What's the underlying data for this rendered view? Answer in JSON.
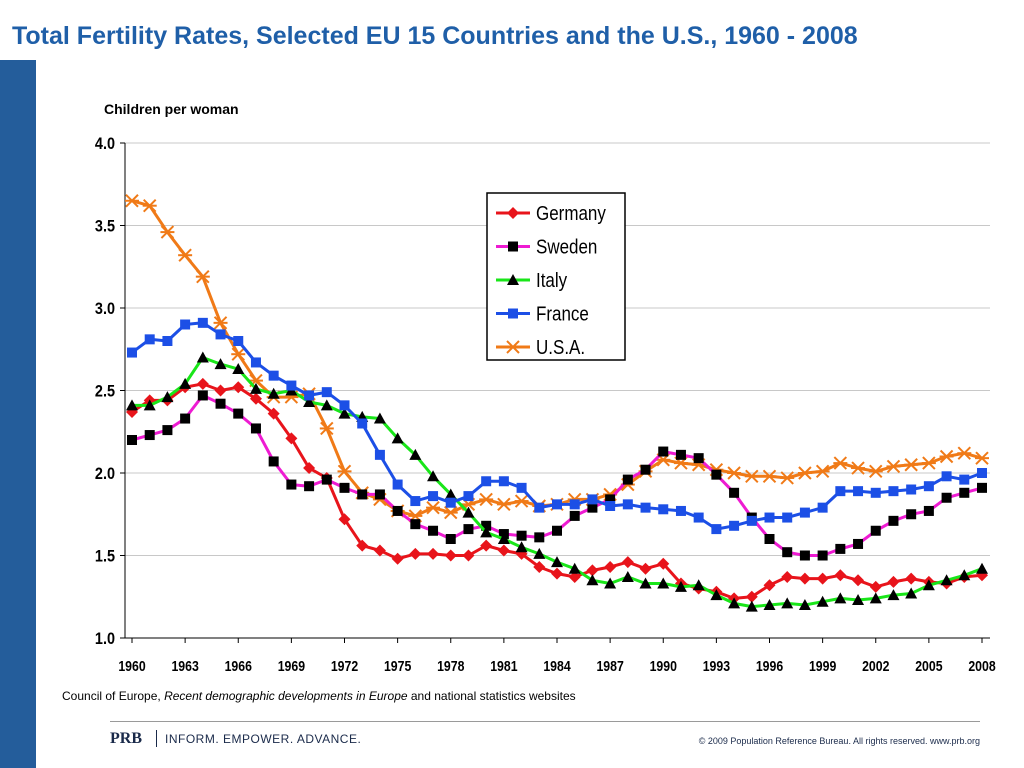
{
  "page": {
    "title": "Total Fertility Rates, Selected EU 15 Countries and the U.S., 1960 - 2008",
    "y_unit_label": "Children per woman",
    "source_prefix": "Council of Europe, ",
    "source_italic": "Recent demographic developments in Europe",
    "source_suffix": " and national statistics websites",
    "footer_logo": "PRB",
    "footer_tagline": "INFORM. EMPOWER. ADVANCE.",
    "copyright": "© 2009 Population Reference Bureau. All rights reserved. www.prb.org",
    "accent_color": "#1f5fa8",
    "side_bar_color": "#245d9b"
  },
  "chart_data": {
    "type": "line",
    "title": "Total Fertility Rates, Selected EU 15 Countries and the U.S., 1960 - 2008",
    "xlabel": "",
    "ylabel": "Children per woman",
    "ylim": [
      1.0,
      4.0
    ],
    "y_ticks": [
      1.0,
      1.5,
      2.0,
      2.5,
      3.0,
      3.5,
      4.0
    ],
    "y_tick_labels": [
      "1.0",
      "1.5",
      "2.0",
      "2.5",
      "3.0",
      "3.5",
      "4.0"
    ],
    "x_tick_labels": [
      "1960",
      "1963",
      "1966",
      "1969",
      "1972",
      "1975",
      "1978",
      "1981",
      "1984",
      "1987",
      "1990",
      "1993",
      "1996",
      "1999",
      "2002",
      "2005",
      "2008"
    ],
    "grid": "horizontal",
    "legend_position": "upper-center",
    "x": [
      1960,
      1961,
      1962,
      1963,
      1964,
      1965,
      1966,
      1967,
      1968,
      1969,
      1970,
      1971,
      1972,
      1973,
      1974,
      1975,
      1976,
      1977,
      1978,
      1979,
      1980,
      1981,
      1982,
      1983,
      1984,
      1985,
      1986,
      1987,
      1988,
      1989,
      1990,
      1991,
      1992,
      1993,
      1994,
      1995,
      1996,
      1997,
      1998,
      1999,
      2000,
      2001,
      2002,
      2003,
      2004,
      2005,
      2006,
      2007,
      2008
    ],
    "series": [
      {
        "name": "Germany",
        "color": "#e8141b",
        "marker": "diamond",
        "values": [
          2.37,
          2.44,
          2.44,
          2.52,
          2.54,
          2.5,
          2.52,
          2.45,
          2.36,
          2.21,
          2.03,
          1.97,
          1.72,
          1.56,
          1.53,
          1.48,
          1.51,
          1.51,
          1.5,
          1.5,
          1.56,
          1.53,
          1.51,
          1.43,
          1.39,
          1.37,
          1.41,
          1.43,
          1.46,
          1.42,
          1.45,
          1.33,
          1.3,
          1.28,
          1.24,
          1.25,
          1.32,
          1.37,
          1.36,
          1.36,
          1.38,
          1.35,
          1.31,
          1.34,
          1.36,
          1.34,
          1.33,
          1.37,
          1.38
        ]
      },
      {
        "name": "Sweden",
        "color": "#ee1bd2",
        "marker": "square",
        "values": [
          2.2,
          2.23,
          2.26,
          2.33,
          2.47,
          2.42,
          2.36,
          2.27,
          2.07,
          1.93,
          1.92,
          1.96,
          1.91,
          1.87,
          1.87,
          1.77,
          1.69,
          1.65,
          1.6,
          1.66,
          1.68,
          1.63,
          1.62,
          1.61,
          1.65,
          1.74,
          1.79,
          1.84,
          1.96,
          2.02,
          2.13,
          2.11,
          2.09,
          1.99,
          1.88,
          1.73,
          1.6,
          1.52,
          1.5,
          1.5,
          1.54,
          1.57,
          1.65,
          1.71,
          1.75,
          1.77,
          1.85,
          1.88,
          1.91
        ]
      },
      {
        "name": "Italy",
        "color": "#19e619",
        "marker": "triangle",
        "values": [
          2.41,
          2.41,
          2.46,
          2.54,
          2.7,
          2.66,
          2.63,
          2.51,
          2.48,
          2.5,
          2.43,
          2.41,
          2.36,
          2.34,
          2.33,
          2.21,
          2.11,
          1.98,
          1.87,
          1.76,
          1.64,
          1.6,
          1.55,
          1.51,
          1.46,
          1.42,
          1.35,
          1.33,
          1.37,
          1.33,
          1.33,
          1.31,
          1.32,
          1.26,
          1.21,
          1.19,
          1.2,
          1.21,
          1.2,
          1.22,
          1.24,
          1.23,
          1.24,
          1.26,
          1.27,
          1.32,
          1.35,
          1.38,
          1.42
        ]
      },
      {
        "name": "France",
        "color": "#1c4fe6",
        "marker": "square",
        "values": [
          2.73,
          2.81,
          2.8,
          2.9,
          2.91,
          2.84,
          2.8,
          2.67,
          2.59,
          2.53,
          2.47,
          2.49,
          2.41,
          2.3,
          2.11,
          1.93,
          1.83,
          1.86,
          1.82,
          1.86,
          1.95,
          1.95,
          1.91,
          1.79,
          1.81,
          1.81,
          1.84,
          1.8,
          1.81,
          1.79,
          1.78,
          1.77,
          1.73,
          1.66,
          1.68,
          1.71,
          1.73,
          1.73,
          1.76,
          1.79,
          1.89,
          1.89,
          1.88,
          1.89,
          1.9,
          1.92,
          1.98,
          1.96,
          2.0
        ]
      },
      {
        "name": "U.S.A.",
        "color": "#f07a17",
        "marker": "asterisk",
        "values": [
          3.65,
          3.62,
          3.46,
          3.32,
          3.19,
          2.91,
          2.72,
          2.56,
          2.46,
          2.46,
          2.48,
          2.27,
          2.01,
          1.88,
          1.84,
          1.77,
          1.74,
          1.79,
          1.76,
          1.81,
          1.84,
          1.81,
          1.83,
          1.8,
          1.81,
          1.84,
          1.84,
          1.87,
          1.93,
          2.01,
          2.08,
          2.06,
          2.05,
          2.02,
          2.0,
          1.98,
          1.98,
          1.97,
          2.0,
          2.01,
          2.06,
          2.03,
          2.01,
          2.04,
          2.05,
          2.06,
          2.1,
          2.12,
          2.09
        ]
      }
    ]
  }
}
